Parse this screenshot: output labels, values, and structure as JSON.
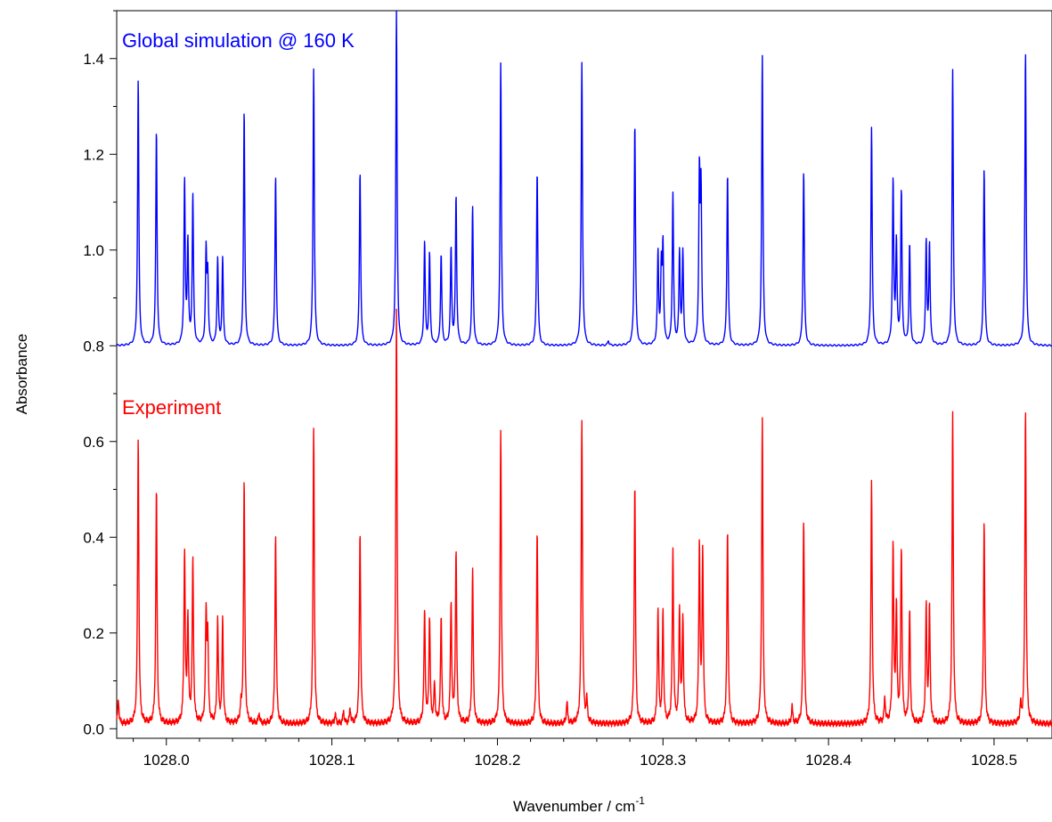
{
  "chart_data": {
    "type": "line",
    "title": "",
    "xlabel": "Wavenumber / cm",
    "xlabel_superscript": "-1",
    "ylabel": "Absorbance",
    "xlim": [
      1027.97,
      1028.535
    ],
    "ylim": [
      -0.02,
      1.5
    ],
    "x_ticks": [
      1028.0,
      1028.1,
      1028.2,
      1028.3,
      1028.4,
      1028.5
    ],
    "x_tick_labels": [
      "1028.0",
      "1028.1",
      "1028.2",
      "1028.3",
      "1028.4",
      "1028.5"
    ],
    "y_ticks": [
      0.0,
      0.2,
      0.4,
      0.6,
      0.8,
      1.0,
      1.2,
      1.4
    ],
    "y_tick_labels": [
      "0.0",
      "0.2",
      "0.4",
      "0.6",
      "0.8",
      "1.0",
      "1.2",
      "1.4"
    ],
    "grid": false,
    "series": [
      {
        "name": "Global simulation @ 160 K",
        "color": "#0000ff",
        "baseline": 0.8,
        "peaks": [
          [
            1027.983,
            1.355
          ],
          [
            1027.994,
            1.25
          ],
          [
            1028.011,
            1.14
          ],
          [
            1028.013,
            1.01
          ],
          [
            1028.016,
            1.11
          ],
          [
            1028.024,
            0.99
          ],
          [
            1028.025,
            0.94
          ],
          [
            1028.031,
            0.98
          ],
          [
            1028.034,
            0.98
          ],
          [
            1028.047,
            1.29
          ],
          [
            1028.066,
            1.155
          ],
          [
            1028.089,
            1.38
          ],
          [
            1028.117,
            1.165
          ],
          [
            1028.139,
            1.5
          ],
          [
            1028.156,
            1.015
          ],
          [
            1028.159,
            0.99
          ],
          [
            1028.166,
            0.99
          ],
          [
            1028.172,
            1.0
          ],
          [
            1028.175,
            1.11
          ],
          [
            1028.185,
            1.09
          ],
          [
            1028.202,
            1.39
          ],
          [
            1028.224,
            1.165
          ],
          [
            1028.251,
            1.39
          ],
          [
            1028.267,
            0.81
          ],
          [
            1028.283,
            1.265
          ],
          [
            1028.297,
            0.99
          ],
          [
            1028.299,
            0.95
          ],
          [
            1028.3,
            1.0
          ],
          [
            1028.306,
            1.115
          ],
          [
            1028.31,
            0.99
          ],
          [
            1028.312,
            0.99
          ],
          [
            1028.322,
            1.145
          ],
          [
            1028.323,
            1.11
          ],
          [
            1028.339,
            1.16
          ],
          [
            1028.36,
            1.405
          ],
          [
            1028.385,
            1.165
          ],
          [
            1028.426,
            1.255
          ],
          [
            1028.439,
            1.14
          ],
          [
            1028.441,
            1.01
          ],
          [
            1028.444,
            1.12
          ],
          [
            1028.449,
            1.01
          ],
          [
            1028.459,
            1.015
          ],
          [
            1028.461,
            1.01
          ],
          [
            1028.475,
            1.375
          ],
          [
            1028.494,
            1.17
          ],
          [
            1028.519,
            1.415
          ]
        ]
      },
      {
        "name": "Experiment",
        "color": "#ff0000",
        "baseline": 0.01,
        "peaks": [
          [
            1027.971,
            0.06
          ],
          [
            1027.983,
            0.605
          ],
          [
            1027.994,
            0.5
          ],
          [
            1028.011,
            0.37
          ],
          [
            1028.013,
            0.225
          ],
          [
            1028.016,
            0.35
          ],
          [
            1028.024,
            0.23
          ],
          [
            1028.025,
            0.185
          ],
          [
            1028.031,
            0.225
          ],
          [
            1028.034,
            0.225
          ],
          [
            1028.045,
            0.04
          ],
          [
            1028.047,
            0.515
          ],
          [
            1028.056,
            0.03
          ],
          [
            1028.066,
            0.405
          ],
          [
            1028.089,
            0.63
          ],
          [
            1028.102,
            0.03
          ],
          [
            1028.107,
            0.035
          ],
          [
            1028.111,
            0.04
          ],
          [
            1028.117,
            0.41
          ],
          [
            1028.139,
            0.875
          ],
          [
            1028.156,
            0.245
          ],
          [
            1028.159,
            0.23
          ],
          [
            1028.162,
            0.09
          ],
          [
            1028.166,
            0.23
          ],
          [
            1028.172,
            0.26
          ],
          [
            1028.175,
            0.37
          ],
          [
            1028.185,
            0.33
          ],
          [
            1028.202,
            0.63
          ],
          [
            1028.224,
            0.415
          ],
          [
            1028.242,
            0.055
          ],
          [
            1028.251,
            0.645
          ],
          [
            1028.254,
            0.055
          ],
          [
            1028.283,
            0.515
          ],
          [
            1028.297,
            0.245
          ],
          [
            1028.3,
            0.24
          ],
          [
            1028.306,
            0.37
          ],
          [
            1028.31,
            0.245
          ],
          [
            1028.312,
            0.23
          ],
          [
            1028.322,
            0.38
          ],
          [
            1028.324,
            0.365
          ],
          [
            1028.339,
            0.415
          ],
          [
            1028.36,
            0.65
          ],
          [
            1028.378,
            0.045
          ],
          [
            1028.385,
            0.44
          ],
          [
            1028.426,
            0.515
          ],
          [
            1028.434,
            0.06
          ],
          [
            1028.439,
            0.38
          ],
          [
            1028.441,
            0.25
          ],
          [
            1028.444,
            0.375
          ],
          [
            1028.449,
            0.245
          ],
          [
            1028.459,
            0.25
          ],
          [
            1028.461,
            0.25
          ],
          [
            1028.475,
            0.655
          ],
          [
            1028.494,
            0.43
          ],
          [
            1028.516,
            0.045
          ],
          [
            1028.519,
            0.67
          ]
        ]
      }
    ]
  }
}
